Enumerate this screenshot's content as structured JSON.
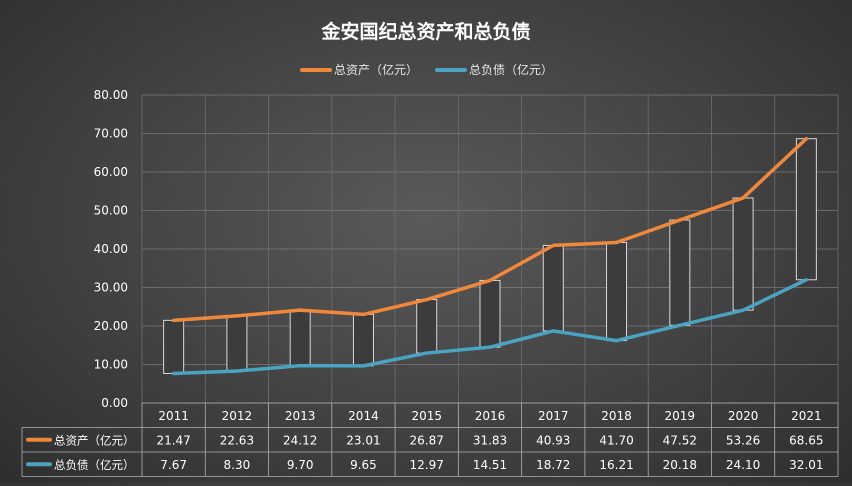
{
  "chart_data": {
    "type": "line",
    "title": "金安国纪总资产和总负债",
    "categories": [
      "2011",
      "2012",
      "2013",
      "2014",
      "2015",
      "2016",
      "2017",
      "2018",
      "2019",
      "2020",
      "2021"
    ],
    "series": [
      {
        "name": "总资产（亿元）",
        "color": "#f0883c",
        "values": [
          21.47,
          22.63,
          24.12,
          23.01,
          26.87,
          31.83,
          40.93,
          41.7,
          47.52,
          53.26,
          68.65
        ],
        "labels": [
          "21.47",
          "22.63",
          "24.12",
          "23.01",
          "26.87",
          "31.83",
          "40.93",
          "41.70",
          "47.52",
          "53.26",
          "68.65"
        ]
      },
      {
        "name": "总负债（亿元）",
        "color": "#4aa3c0",
        "values": [
          7.67,
          8.3,
          9.7,
          9.65,
          12.97,
          14.51,
          18.72,
          16.21,
          20.18,
          24.1,
          32.01
        ],
        "labels": [
          "7.67",
          "8.30",
          "9.70",
          "9.65",
          "12.97",
          "14.51",
          "18.72",
          "16.21",
          "20.18",
          "24.10",
          "32.01"
        ]
      }
    ],
    "ylim": [
      0,
      80
    ],
    "yticks": [
      "0.00",
      "10.00",
      "20.00",
      "30.00",
      "40.00",
      "50.00",
      "60.00",
      "70.00",
      "80.00"
    ],
    "grid": true,
    "legend": "top-center",
    "data_table": true,
    "updown_bars": true
  }
}
